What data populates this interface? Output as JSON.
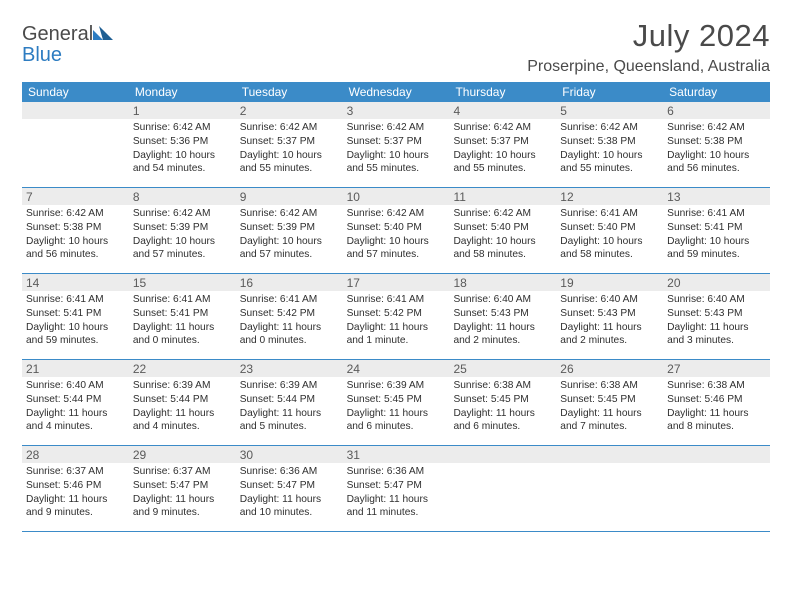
{
  "logo": {
    "word1": "General",
    "word2": "Blue"
  },
  "title": "July 2024",
  "location": "Proserpine, Queensland, Australia",
  "colors": {
    "header_bg": "#3b8bc8",
    "header_text": "#ffffff",
    "daynum_bg": "#ececec",
    "daynum_text": "#5a5a5a",
    "body_text": "#2f2f2f",
    "rule": "#3b8bc8",
    "page_bg": "#ffffff",
    "title_text": "#4a4a4a",
    "logo_gray": "#4a4a4a",
    "logo_blue": "#2d7cc1"
  },
  "typography": {
    "title_fontsize": 31,
    "location_fontsize": 16,
    "dow_fontsize": 12,
    "daynum_fontsize": 12,
    "body_fontsize": 10.2
  },
  "days_of_week": [
    "Sunday",
    "Monday",
    "Tuesday",
    "Wednesday",
    "Thursday",
    "Friday",
    "Saturday"
  ],
  "weeks": [
    [
      {
        "n": "",
        "sunrise": "",
        "sunset": "",
        "daylight": ""
      },
      {
        "n": "1",
        "sunrise": "Sunrise: 6:42 AM",
        "sunset": "Sunset: 5:36 PM",
        "daylight": "Daylight: 10 hours and 54 minutes."
      },
      {
        "n": "2",
        "sunrise": "Sunrise: 6:42 AM",
        "sunset": "Sunset: 5:37 PM",
        "daylight": "Daylight: 10 hours and 55 minutes."
      },
      {
        "n": "3",
        "sunrise": "Sunrise: 6:42 AM",
        "sunset": "Sunset: 5:37 PM",
        "daylight": "Daylight: 10 hours and 55 minutes."
      },
      {
        "n": "4",
        "sunrise": "Sunrise: 6:42 AM",
        "sunset": "Sunset: 5:37 PM",
        "daylight": "Daylight: 10 hours and 55 minutes."
      },
      {
        "n": "5",
        "sunrise": "Sunrise: 6:42 AM",
        "sunset": "Sunset: 5:38 PM",
        "daylight": "Daylight: 10 hours and 55 minutes."
      },
      {
        "n": "6",
        "sunrise": "Sunrise: 6:42 AM",
        "sunset": "Sunset: 5:38 PM",
        "daylight": "Daylight: 10 hours and 56 minutes."
      }
    ],
    [
      {
        "n": "7",
        "sunrise": "Sunrise: 6:42 AM",
        "sunset": "Sunset: 5:38 PM",
        "daylight": "Daylight: 10 hours and 56 minutes."
      },
      {
        "n": "8",
        "sunrise": "Sunrise: 6:42 AM",
        "sunset": "Sunset: 5:39 PM",
        "daylight": "Daylight: 10 hours and 57 minutes."
      },
      {
        "n": "9",
        "sunrise": "Sunrise: 6:42 AM",
        "sunset": "Sunset: 5:39 PM",
        "daylight": "Daylight: 10 hours and 57 minutes."
      },
      {
        "n": "10",
        "sunrise": "Sunrise: 6:42 AM",
        "sunset": "Sunset: 5:40 PM",
        "daylight": "Daylight: 10 hours and 57 minutes."
      },
      {
        "n": "11",
        "sunrise": "Sunrise: 6:42 AM",
        "sunset": "Sunset: 5:40 PM",
        "daylight": "Daylight: 10 hours and 58 minutes."
      },
      {
        "n": "12",
        "sunrise": "Sunrise: 6:41 AM",
        "sunset": "Sunset: 5:40 PM",
        "daylight": "Daylight: 10 hours and 58 minutes."
      },
      {
        "n": "13",
        "sunrise": "Sunrise: 6:41 AM",
        "sunset": "Sunset: 5:41 PM",
        "daylight": "Daylight: 10 hours and 59 minutes."
      }
    ],
    [
      {
        "n": "14",
        "sunrise": "Sunrise: 6:41 AM",
        "sunset": "Sunset: 5:41 PM",
        "daylight": "Daylight: 10 hours and 59 minutes."
      },
      {
        "n": "15",
        "sunrise": "Sunrise: 6:41 AM",
        "sunset": "Sunset: 5:41 PM",
        "daylight": "Daylight: 11 hours and 0 minutes."
      },
      {
        "n": "16",
        "sunrise": "Sunrise: 6:41 AM",
        "sunset": "Sunset: 5:42 PM",
        "daylight": "Daylight: 11 hours and 0 minutes."
      },
      {
        "n": "17",
        "sunrise": "Sunrise: 6:41 AM",
        "sunset": "Sunset: 5:42 PM",
        "daylight": "Daylight: 11 hours and 1 minute."
      },
      {
        "n": "18",
        "sunrise": "Sunrise: 6:40 AM",
        "sunset": "Sunset: 5:43 PM",
        "daylight": "Daylight: 11 hours and 2 minutes."
      },
      {
        "n": "19",
        "sunrise": "Sunrise: 6:40 AM",
        "sunset": "Sunset: 5:43 PM",
        "daylight": "Daylight: 11 hours and 2 minutes."
      },
      {
        "n": "20",
        "sunrise": "Sunrise: 6:40 AM",
        "sunset": "Sunset: 5:43 PM",
        "daylight": "Daylight: 11 hours and 3 minutes."
      }
    ],
    [
      {
        "n": "21",
        "sunrise": "Sunrise: 6:40 AM",
        "sunset": "Sunset: 5:44 PM",
        "daylight": "Daylight: 11 hours and 4 minutes."
      },
      {
        "n": "22",
        "sunrise": "Sunrise: 6:39 AM",
        "sunset": "Sunset: 5:44 PM",
        "daylight": "Daylight: 11 hours and 4 minutes."
      },
      {
        "n": "23",
        "sunrise": "Sunrise: 6:39 AM",
        "sunset": "Sunset: 5:44 PM",
        "daylight": "Daylight: 11 hours and 5 minutes."
      },
      {
        "n": "24",
        "sunrise": "Sunrise: 6:39 AM",
        "sunset": "Sunset: 5:45 PM",
        "daylight": "Daylight: 11 hours and 6 minutes."
      },
      {
        "n": "25",
        "sunrise": "Sunrise: 6:38 AM",
        "sunset": "Sunset: 5:45 PM",
        "daylight": "Daylight: 11 hours and 6 minutes."
      },
      {
        "n": "26",
        "sunrise": "Sunrise: 6:38 AM",
        "sunset": "Sunset: 5:45 PM",
        "daylight": "Daylight: 11 hours and 7 minutes."
      },
      {
        "n": "27",
        "sunrise": "Sunrise: 6:38 AM",
        "sunset": "Sunset: 5:46 PM",
        "daylight": "Daylight: 11 hours and 8 minutes."
      }
    ],
    [
      {
        "n": "28",
        "sunrise": "Sunrise: 6:37 AM",
        "sunset": "Sunset: 5:46 PM",
        "daylight": "Daylight: 11 hours and 9 minutes."
      },
      {
        "n": "29",
        "sunrise": "Sunrise: 6:37 AM",
        "sunset": "Sunset: 5:47 PM",
        "daylight": "Daylight: 11 hours and 9 minutes."
      },
      {
        "n": "30",
        "sunrise": "Sunrise: 6:36 AM",
        "sunset": "Sunset: 5:47 PM",
        "daylight": "Daylight: 11 hours and 10 minutes."
      },
      {
        "n": "31",
        "sunrise": "Sunrise: 6:36 AM",
        "sunset": "Sunset: 5:47 PM",
        "daylight": "Daylight: 11 hours and 11 minutes."
      },
      {
        "n": "",
        "sunrise": "",
        "sunset": "",
        "daylight": ""
      },
      {
        "n": "",
        "sunrise": "",
        "sunset": "",
        "daylight": ""
      },
      {
        "n": "",
        "sunrise": "",
        "sunset": "",
        "daylight": ""
      }
    ]
  ]
}
